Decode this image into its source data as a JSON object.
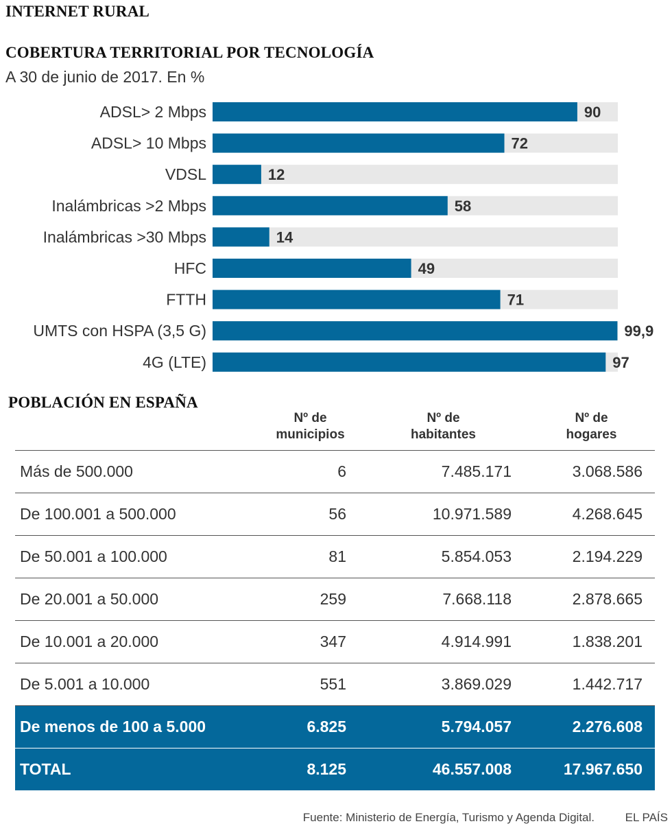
{
  "header": {
    "title": "INTERNET RURAL"
  },
  "chart_data": {
    "type": "bar",
    "orientation": "horizontal",
    "title": "COBERTURA  TERRITORIAL POR TECNOLOGÍA",
    "subtitle": "A 30 de junio de 2017. En %",
    "categories": [
      "ADSL> 2 Mbps",
      "ADSL> 10 Mbps",
      "VDSL",
      "Inalámbricas >2 Mbps",
      "Inalámbricas >30 Mbps",
      "HFC",
      "FTTH",
      "UMTS con HSPA (3,5 G)",
      "4G (LTE)"
    ],
    "values": [
      90,
      72,
      12,
      58,
      14,
      49,
      71,
      99.9,
      97
    ],
    "value_labels": [
      "90",
      "72",
      "12",
      "58",
      "14",
      "49",
      "71",
      "99,9",
      "97"
    ],
    "xlim": [
      0,
      100
    ],
    "bar_color": "#04689b",
    "track_color": "#e8e8e8",
    "xlabel": "",
    "ylabel": ""
  },
  "table": {
    "title": "POBLACIÓN EN ESPAÑA",
    "headers": [
      "",
      "Nº de\nmunicipios",
      "Nº de\nhabitantes",
      "Nº de\nhogares"
    ],
    "rows": [
      [
        "Más de 500.000",
        "6",
        "7.485.171",
        "3.068.586"
      ],
      [
        "De 100.001 a 500.000",
        "56",
        "10.971.589",
        "4.268.645"
      ],
      [
        "De 50.001 a 100.000",
        "81",
        "5.854.053",
        "2.194.229"
      ],
      [
        "De 20.001 a 50.000",
        "259",
        "7.668.118",
        "2.878.665"
      ],
      [
        "De 10.001 a 20.000",
        "347",
        "4.914.991",
        "1.838.201"
      ],
      [
        "De 5.001 a 10.000",
        "551",
        "3.869.029",
        "1.442.717"
      ]
    ],
    "highlight_rows": [
      [
        "De menos de 100 a 5.000",
        "6.825",
        "5.794.057",
        "2.276.608"
      ],
      [
        "TOTAL",
        "8.125",
        "46.557.008",
        "17.967.650"
      ]
    ],
    "highlight_color": "#04689b"
  },
  "footer": {
    "source": "Fuente: Ministerio de Energía, Turismo y Agenda Digital.",
    "brand": "EL PAÍS"
  }
}
